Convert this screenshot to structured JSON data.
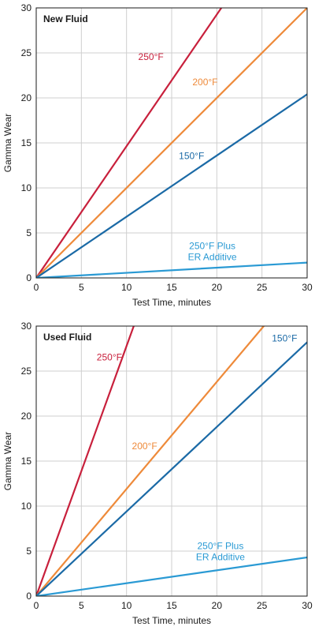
{
  "chart_data": [
    {
      "type": "line",
      "panel_label": "New Fluid",
      "xlabel": "Test Time, minutes",
      "ylabel": "Gamma Wear",
      "xlim": [
        0,
        30
      ],
      "ylim": [
        0,
        30
      ],
      "xticks": [
        "0",
        "5",
        "10",
        "15",
        "20",
        "25",
        "30"
      ],
      "yticks": [
        "0",
        "5",
        "10",
        "15",
        "20",
        "25",
        "30"
      ],
      "grid": true,
      "series": [
        {
          "name": "250°F",
          "color": "#c8203c",
          "x": [
            0,
            20.5
          ],
          "y": [
            0,
            30
          ]
        },
        {
          "name": "200°F",
          "color": "#ee8a3a",
          "x": [
            0,
            30
          ],
          "y": [
            0,
            30
          ]
        },
        {
          "name": "150°F",
          "color": "#1b6aa6",
          "x": [
            0,
            30
          ],
          "y": [
            0,
            20.4
          ]
        },
        {
          "name": "250°F Plus ER Additive",
          "name_lines": [
            "250°F Plus",
            "ER Additive"
          ],
          "color": "#2a9ad4",
          "x": [
            0,
            30
          ],
          "y": [
            0,
            1.7
          ]
        }
      ]
    },
    {
      "type": "line",
      "panel_label": "Used Fluid",
      "xlabel": "Test Time, minutes",
      "ylabel": "Gamma Wear",
      "xlim": [
        0,
        30
      ],
      "ylim": [
        0,
        30
      ],
      "xticks": [
        "0",
        "5",
        "10",
        "15",
        "20",
        "25",
        "30"
      ],
      "yticks": [
        "0",
        "5",
        "10",
        "15",
        "20",
        "25",
        "30"
      ],
      "grid": true,
      "series": [
        {
          "name": "250°F",
          "color": "#c8203c",
          "x": [
            0,
            10.8
          ],
          "y": [
            0,
            30
          ]
        },
        {
          "name": "200°F",
          "color": "#ee8a3a",
          "x": [
            0,
            25.2
          ],
          "y": [
            0,
            30
          ]
        },
        {
          "name": "150°F",
          "color": "#1b6aa6",
          "x": [
            0,
            30
          ],
          "y": [
            0,
            28.2
          ]
        },
        {
          "name": "250°F Plus ER Additive",
          "name_lines": [
            "250°F Plus",
            "ER Additive"
          ],
          "color": "#2a9ad4",
          "x": [
            0,
            30
          ],
          "y": [
            0,
            4.3
          ]
        }
      ]
    }
  ]
}
